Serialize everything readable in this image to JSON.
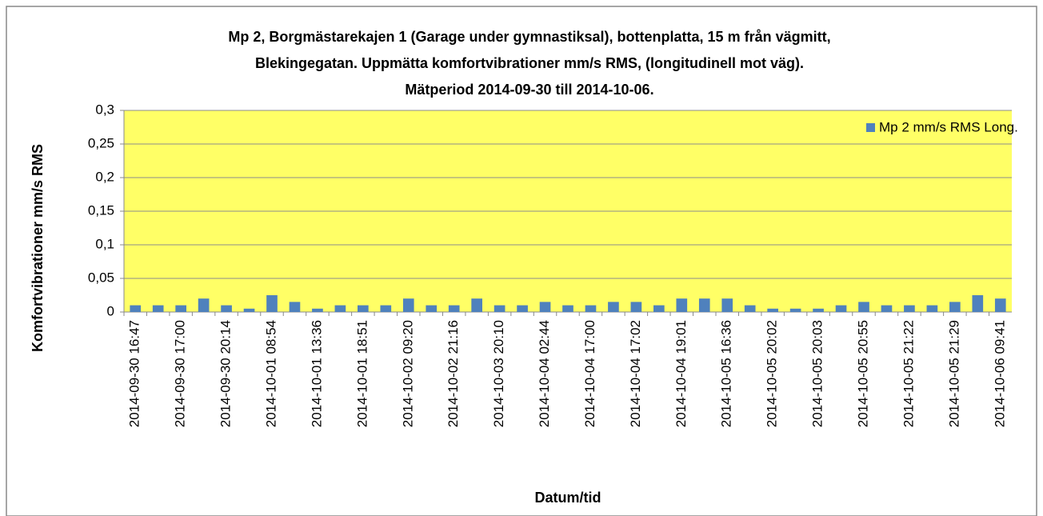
{
  "chart_data": {
    "type": "bar",
    "title": [
      "Mp 2, Borgmästarekajen 1 (Garage under gymnastiksal), bottenplatta,  15 m från vägmitt,",
      "Blekingegatan. Uppmätta komfortvibrationer mm/s RMS, (longitudinell mot väg).",
      "Mätperiod 2014-09-30 till 2014-10-06."
    ],
    "x_label": "Datum/tid",
    "y_label": "Komfortvibrationer  mm/s RMS",
    "categories": [
      "2014-09-30 16:47",
      null,
      "2014-09-30 17:00",
      null,
      "2014-09-30 20:14",
      null,
      "2014-10-01 08:54",
      null,
      "2014-10-01 13:36",
      null,
      "2014-10-01 18:51",
      null,
      "2014-10-02 09:20",
      null,
      "2014-10-02 21:16",
      null,
      "2014-10-03 20:10",
      null,
      "2014-10-04 02:44",
      null,
      "2014-10-04 17:00",
      null,
      "2014-10-04 17:02",
      null,
      "2014-10-04 19:01",
      null,
      "2014-10-05 16:36",
      null,
      "2014-10-05 20:02",
      null,
      "2014-10-05 20:03",
      null,
      "2014-10-05 20:55",
      null,
      "2014-10-05 21:22",
      null,
      "2014-10-05 21:29",
      null,
      "2014-10-06 09:41"
    ],
    "series": [
      {
        "name": "Mp 2 mm/s RMS Long.",
        "color": "#4f81bd",
        "values": [
          0.01,
          0.01,
          0.01,
          0.02,
          0.01,
          0.005,
          0.025,
          0.015,
          0.005,
          0.01,
          0.01,
          0.01,
          0.02,
          0.01,
          0.01,
          0.02,
          0.01,
          0.01,
          0.015,
          0.01,
          0.01,
          0.015,
          0.015,
          0.01,
          0.02,
          0.02,
          0.02,
          0.01,
          0.005,
          0.005,
          0.005,
          0.01,
          0.015,
          0.01,
          0.01,
          0.01,
          0.015,
          0.025,
          0.02
        ]
      }
    ],
    "ylim": [
      0,
      0.3
    ],
    "yticks": [
      0,
      {
        "value": 0.05,
        "label": "0,05"
      },
      {
        "value": 0.1,
        "label": "0,1"
      },
      {
        "value": 0.15,
        "label": "0,15"
      },
      {
        "value": 0.2,
        "label": "0,2"
      },
      {
        "value": 0.25,
        "label": "0,25"
      },
      {
        "value": 0.3,
        "label": "0,3"
      }
    ],
    "grid": true,
    "legend": "top-right",
    "plot_background": "#ffff66"
  }
}
